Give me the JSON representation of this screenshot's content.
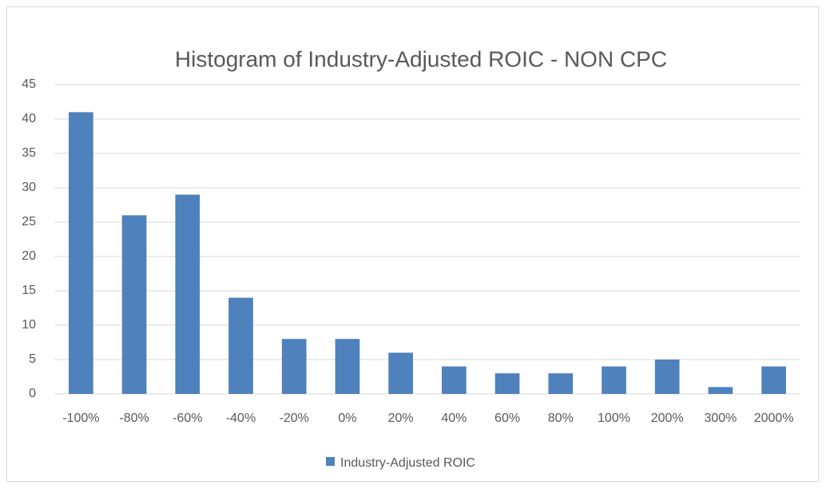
{
  "chart_data": {
    "type": "bar",
    "title": "Histogram of Industry-Adjusted ROIC - NON CPC",
    "categories": [
      "-100%",
      "-80%",
      "-60%",
      "-40%",
      "-20%",
      "0%",
      "20%",
      "40%",
      "60%",
      "80%",
      "100%",
      "200%",
      "300%",
      "2000%"
    ],
    "series": [
      {
        "name": "Industry-Adjusted ROIC",
        "color": "#4f81bd",
        "values": [
          41,
          26,
          29,
          14,
          8,
          8,
          6,
          4,
          3,
          3,
          4,
          5,
          1,
          4
        ]
      }
    ],
    "ylim": [
      0,
      45
    ],
    "yticks": [
      0,
      5,
      10,
      15,
      20,
      25,
      30,
      35,
      40,
      45
    ],
    "grid": true,
    "legend": "bottom"
  }
}
